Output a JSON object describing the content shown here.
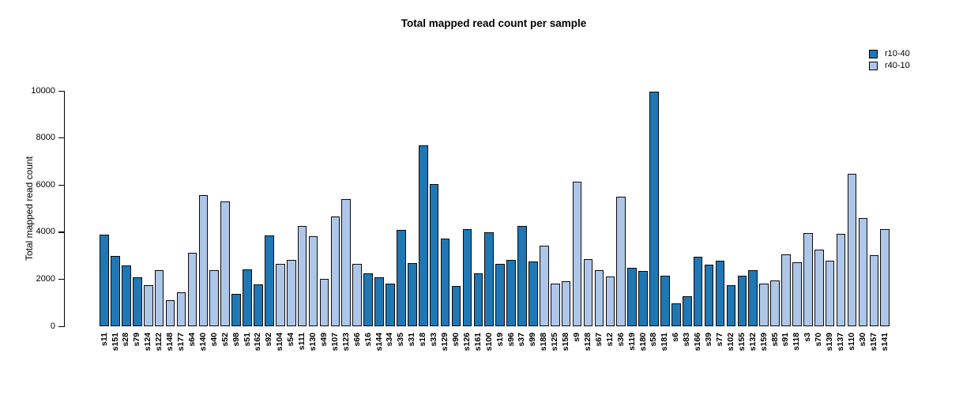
{
  "chart_data": {
    "type": "bar",
    "title": "Total mapped read count per sample",
    "xlabel": "",
    "ylabel": "Total mapped read count",
    "ylim": [
      0,
      10000
    ],
    "yticks": [
      0,
      2000,
      4000,
      6000,
      8000,
      10000
    ],
    "grid": false,
    "legend_position": "top-right",
    "bar_edge_color": "#0a0a0f",
    "legend": [
      {
        "label": "r10-40",
        "color": "#1f77b4"
      },
      {
        "label": "r40-10",
        "color": "#aec7e8"
      }
    ],
    "series_colors": {
      "r10-40": "#1f77b4",
      "r40-10": "#aec7e8"
    },
    "samples": [
      {
        "label": "s11",
        "group": "r10-40",
        "value": 3880
      },
      {
        "label": "s151",
        "group": "r10-40",
        "value": 2980
      },
      {
        "label": "s28",
        "group": "r10-40",
        "value": 2570
      },
      {
        "label": "s79",
        "group": "r10-40",
        "value": 2090
      },
      {
        "label": "s124",
        "group": "r40-10",
        "value": 1730
      },
      {
        "label": "s122",
        "group": "r40-10",
        "value": 2390
      },
      {
        "label": "s148",
        "group": "r40-10",
        "value": 1100
      },
      {
        "label": "s177",
        "group": "r40-10",
        "value": 1430
      },
      {
        "label": "s64",
        "group": "r40-10",
        "value": 3110
      },
      {
        "label": "s140",
        "group": "r40-10",
        "value": 5560
      },
      {
        "label": "s40",
        "group": "r40-10",
        "value": 2370
      },
      {
        "label": "s52",
        "group": "r40-10",
        "value": 5310
      },
      {
        "label": "s98",
        "group": "r10-40",
        "value": 1390
      },
      {
        "label": "s51",
        "group": "r10-40",
        "value": 2430
      },
      {
        "label": "s162",
        "group": "r10-40",
        "value": 1770
      },
      {
        "label": "s92",
        "group": "r10-40",
        "value": 3850
      },
      {
        "label": "s104",
        "group": "r40-10",
        "value": 2650
      },
      {
        "label": "s54",
        "group": "r40-10",
        "value": 2820
      },
      {
        "label": "s111",
        "group": "r40-10",
        "value": 4270
      },
      {
        "label": "s130",
        "group": "r40-10",
        "value": 3820
      },
      {
        "label": "s49",
        "group": "r40-10",
        "value": 2010
      },
      {
        "label": "s107",
        "group": "r40-10",
        "value": 4660
      },
      {
        "label": "s123",
        "group": "r40-10",
        "value": 5400
      },
      {
        "label": "s66",
        "group": "r40-10",
        "value": 2640
      },
      {
        "label": "s16",
        "group": "r10-40",
        "value": 2260
      },
      {
        "label": "s144",
        "group": "r10-40",
        "value": 2090
      },
      {
        "label": "s34",
        "group": "r10-40",
        "value": 1820
      },
      {
        "label": "s35",
        "group": "r10-40",
        "value": 4080
      },
      {
        "label": "s31",
        "group": "r10-40",
        "value": 2670
      },
      {
        "label": "s18",
        "group": "r10-40",
        "value": 7680
      },
      {
        "label": "s33",
        "group": "r10-40",
        "value": 6040
      },
      {
        "label": "s129",
        "group": "r10-40",
        "value": 3720
      },
      {
        "label": "s90",
        "group": "r10-40",
        "value": 1700
      },
      {
        "label": "s126",
        "group": "r10-40",
        "value": 4120
      },
      {
        "label": "s161",
        "group": "r10-40",
        "value": 2240
      },
      {
        "label": "s100",
        "group": "r10-40",
        "value": 3980
      },
      {
        "label": "s19",
        "group": "r10-40",
        "value": 2640
      },
      {
        "label": "s96",
        "group": "r10-40",
        "value": 2830
      },
      {
        "label": "s37",
        "group": "r10-40",
        "value": 4270
      },
      {
        "label": "s99",
        "group": "r10-40",
        "value": 2740
      },
      {
        "label": "s188",
        "group": "r40-10",
        "value": 3430
      },
      {
        "label": "s125",
        "group": "r40-10",
        "value": 1820
      },
      {
        "label": "s158",
        "group": "r40-10",
        "value": 1920
      },
      {
        "label": "s9",
        "group": "r40-10",
        "value": 6150
      },
      {
        "label": "s128",
        "group": "r40-10",
        "value": 2840
      },
      {
        "label": "s67",
        "group": "r40-10",
        "value": 2370
      },
      {
        "label": "s12",
        "group": "r40-10",
        "value": 2100
      },
      {
        "label": "s36",
        "group": "r40-10",
        "value": 5490
      },
      {
        "label": "s119",
        "group": "r10-40",
        "value": 2470
      },
      {
        "label": "s180",
        "group": "r10-40",
        "value": 2350
      },
      {
        "label": "s58",
        "group": "r10-40",
        "value": 9950
      },
      {
        "label": "s181",
        "group": "r10-40",
        "value": 2140
      },
      {
        "label": "s6",
        "group": "r10-40",
        "value": 980
      },
      {
        "label": "s83",
        "group": "r10-40",
        "value": 1270
      },
      {
        "label": "s166",
        "group": "r10-40",
        "value": 2960
      },
      {
        "label": "s39",
        "group": "r10-40",
        "value": 2610
      },
      {
        "label": "s77",
        "group": "r10-40",
        "value": 2780
      },
      {
        "label": "s102",
        "group": "r10-40",
        "value": 1760
      },
      {
        "label": "s155",
        "group": "r10-40",
        "value": 2160
      },
      {
        "label": "s132",
        "group": "r10-40",
        "value": 2390
      },
      {
        "label": "s159",
        "group": "r40-10",
        "value": 1820
      },
      {
        "label": "s85",
        "group": "r40-10",
        "value": 1940
      },
      {
        "label": "s91",
        "group": "r40-10",
        "value": 3040
      },
      {
        "label": "s118",
        "group": "r40-10",
        "value": 2710
      },
      {
        "label": "s3",
        "group": "r40-10",
        "value": 3950
      },
      {
        "label": "s70",
        "group": "r40-10",
        "value": 3240
      },
      {
        "label": "s139",
        "group": "r40-10",
        "value": 2800
      },
      {
        "label": "s137",
        "group": "r40-10",
        "value": 3920
      },
      {
        "label": "s110",
        "group": "r40-10",
        "value": 6490
      },
      {
        "label": "s30",
        "group": "r40-10",
        "value": 4590
      },
      {
        "label": "s157",
        "group": "r40-10",
        "value": 3030
      },
      {
        "label": "s141",
        "group": "r40-10",
        "value": 4140
      }
    ]
  }
}
